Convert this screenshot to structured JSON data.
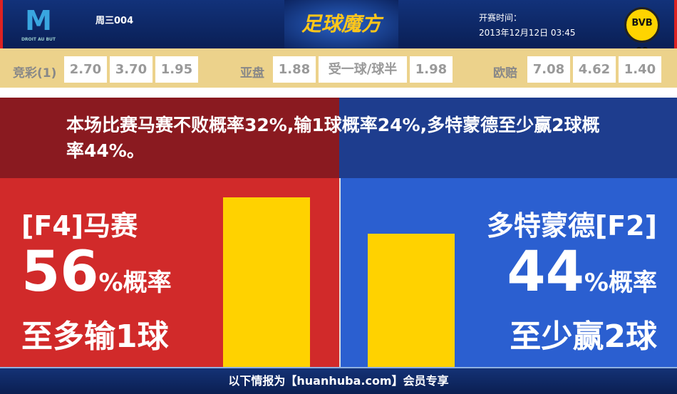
{
  "header": {
    "home_logo_text": "M",
    "home_logo_motto": "DROIT AU BUT",
    "match_no": "周三004",
    "brand": "足球魔方",
    "kickoff_label": "开赛时间：",
    "kickoff_time": "2013年12月12日 03:45",
    "away_logo_text": "BVB 09"
  },
  "odds": {
    "jc_label": "竞彩(1)",
    "jc": [
      "2.70",
      "3.70",
      "1.95"
    ],
    "ah_label": "亚盘",
    "ah": [
      "1.88",
      "受一球/球半",
      "1.98"
    ],
    "eu_label": "欧赔",
    "eu": [
      "7.08",
      "4.62",
      "1.40"
    ]
  },
  "summary": "本场比赛马赛不败概率32%,输1球概率24%,多特蒙德至少赢2球概率44%。",
  "home": {
    "name": "[F4]马赛",
    "pct": "56",
    "pct_suffix": "%概率",
    "outcome": "至多输1球",
    "value": 56,
    "color": "#d12a2a"
  },
  "away": {
    "name": "多特蒙德[F2]",
    "pct": "44",
    "pct_suffix": "%概率",
    "outcome": "至少赢2球",
    "value": 44,
    "color": "#2b5fd0"
  },
  "bar_color": "#ffd200",
  "footer": "以下情报为【huanhuba.com】会员专享"
}
